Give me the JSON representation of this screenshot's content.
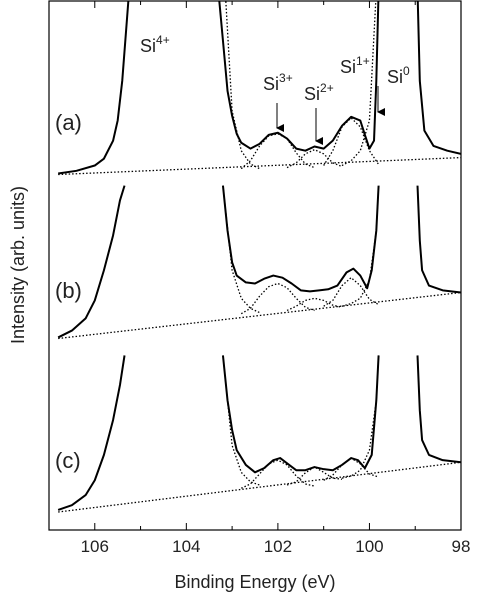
{
  "chart_data": {
    "type": "line",
    "x_label": "Binding Energy (eV)",
    "y_label": "Intensity (arb. units)",
    "xlim": [
      107,
      98
    ],
    "xticks": [
      106,
      104,
      102,
      100,
      98
    ],
    "xminorticks": [
      105,
      103,
      101,
      99
    ],
    "ylim": [
      0,
      100
    ],
    "annotations": [
      {
        "text": "Si",
        "sup": "4+"
      },
      {
        "text": "Si",
        "sup": "3+"
      },
      {
        "text": "Si",
        "sup": "2+"
      },
      {
        "text": "Si",
        "sup": "1+"
      },
      {
        "text": "Si",
        "sup": "0"
      }
    ],
    "panels": [
      {
        "label": "(a)",
        "series": [
          {
            "style": "solid",
            "color": "#000000",
            "x": [
              106.8,
              106.4,
              106.0,
              105.8,
              105.6,
              105.5,
              105.4,
              105.3,
              105.25,
              104.3,
              103.3,
              103.2,
              103.1,
              103.0,
              102.9,
              102.8,
              102.6,
              102.4,
              102.2,
              102.0,
              101.8,
              101.6,
              101.4,
              101.2,
              101.0,
              100.8,
              100.6,
              100.4,
              100.2,
              100.1,
              100.0,
              99.9,
              99.85,
              99.8,
              99.4,
              98.95,
              98.9,
              98.8,
              98.6,
              98.3,
              98.0
            ],
            "values": [
              67.4,
              67.9,
              68.9,
              70.2,
              73.6,
              77.4,
              84.9,
              96.2,
              101.9,
              null,
              101.9,
              92.5,
              83.0,
              78.3,
              74.9,
              73.2,
              72.1,
              73.0,
              74.7,
              75.1,
              74.0,
              72.1,
              71.7,
              72.5,
              72.1,
              73.6,
              76.4,
              78.1,
              77.4,
              74.7,
              72.1,
              73.6,
              84.9,
              101.9,
              null,
              101.9,
              84.9,
              75.5,
              72.6,
              71.7,
              71.1
            ]
          },
          {
            "style": "dotted",
            "color": "#000000",
            "x": [
              106.8,
              98.0
            ],
            "values": [
              67.2,
              70.4
            ]
          },
          {
            "style": "dotted",
            "color": "#000000",
            "x": [
              102.8,
              102.6,
              102.4,
              102.2,
              102.0,
              101.8,
              101.6,
              101.4,
              101.2
            ],
            "values": [
              68.3,
              69.8,
              72.6,
              74.5,
              74.9,
              74.0,
              71.3,
              69.2,
              68.5
            ]
          },
          {
            "style": "dotted",
            "color": "#000000",
            "x": [
              101.8,
              101.6,
              101.4,
              101.2,
              101.0,
              100.8,
              100.6
            ],
            "values": [
              68.5,
              69.4,
              71.1,
              71.9,
              71.1,
              69.4,
              68.7
            ]
          },
          {
            "style": "dotted",
            "color": "#000000",
            "x": [
              101.0,
              100.8,
              100.6,
              100.4,
              100.2,
              100.0,
              99.8
            ],
            "values": [
              68.9,
              71.7,
              76.2,
              77.9,
              76.2,
              71.7,
              69.1
            ]
          },
          {
            "style": "dotted",
            "color": "#000000",
            "x": [
              103.15,
              103.0,
              102.8,
              102.6,
              102.4
            ],
            "values": [
              101.9,
              79.2,
              71.7,
              69.2,
              68.3
            ]
          },
          {
            "style": "dotted",
            "color": "#000000",
            "x": [
              100.6,
              100.4,
              100.2,
              100.0,
              99.85
            ],
            "values": [
              68.9,
              69.8,
              71.7,
              77.4,
              101.9
            ]
          }
        ]
      },
      {
        "label": "(b)",
        "series": [
          {
            "style": "solid",
            "color": "#000000",
            "x": [
              106.8,
              106.5,
              106.2,
              106.0,
              105.8,
              105.6,
              105.45,
              105.35,
              104.3,
              103.2,
              103.1,
              103.0,
              102.9,
              102.7,
              102.5,
              102.3,
              102.1,
              101.9,
              101.7,
              101.5,
              101.3,
              101.1,
              100.9,
              100.7,
              100.5,
              100.35,
              100.2,
              100.05,
              99.95,
              99.85,
              99.8,
              99.4,
              98.95,
              98.9,
              98.85,
              98.7,
              98.4,
              98.0
            ],
            "values": [
              36.4,
              37.7,
              40.0,
              43.4,
              49.1,
              55.7,
              62.3,
              65.1,
              null,
              65.1,
              56.6,
              50.6,
              48.1,
              46.8,
              46.6,
              47.5,
              48.1,
              47.7,
              46.6,
              45.3,
              45.1,
              45.3,
              45.5,
              46.2,
              48.7,
              49.4,
              48.1,
              45.7,
              49.1,
              56.6,
              65.1,
              null,
              65.1,
              54.7,
              49.1,
              46.2,
              45.3,
              44.9
            ]
          },
          {
            "style": "dotted",
            "color": "#000000",
            "x": [
              106.8,
              98.0
            ],
            "values": [
              36.2,
              44.9
            ]
          },
          {
            "style": "dotted",
            "color": "#000000",
            "x": [
              102.8,
              102.6,
              102.4,
              102.2,
              102.0,
              101.8,
              101.6,
              101.4,
              101.2
            ],
            "values": [
              40.9,
              41.9,
              44.2,
              46.0,
              46.6,
              45.8,
              43.8,
              42.1,
              41.5
            ]
          },
          {
            "style": "dotted",
            "color": "#000000",
            "x": [
              101.8,
              101.6,
              101.4,
              101.2,
              101.0,
              100.8,
              100.6
            ],
            "values": [
              41.5,
              42.3,
              43.4,
              43.8,
              43.4,
              42.5,
              42.1
            ]
          },
          {
            "style": "dotted",
            "color": "#000000",
            "x": [
              101.0,
              100.8,
              100.6,
              100.4,
              100.2,
              100.0,
              99.8
            ],
            "values": [
              42.3,
              43.4,
              46.2,
              47.7,
              46.2,
              43.6,
              42.6
            ]
          },
          {
            "style": "dotted",
            "color": "#000000",
            "x": [
              103.2,
              103.0,
              102.8,
              102.6,
              102.4
            ],
            "values": [
              65.1,
              49.1,
              43.8,
              41.9,
              41.1
            ]
          },
          {
            "style": "dotted",
            "color": "#000000",
            "x": [
              100.6,
              100.4,
              100.2,
              100.0,
              99.85,
              99.8
            ],
            "values": [
              42.3,
              42.8,
              43.8,
              47.2,
              56.6,
              65.1
            ]
          }
        ]
      },
      {
        "label": "(c)",
        "series": [
          {
            "style": "solid",
            "color": "#000000",
            "x": [
              106.8,
              106.5,
              106.2,
              106.0,
              105.8,
              105.6,
              105.45,
              105.35,
              104.3,
              103.2,
              103.1,
              103.0,
              102.9,
              102.7,
              102.5,
              102.3,
              102.1,
              101.95,
              101.8,
              101.6,
              101.4,
              101.2,
              101.0,
              100.8,
              100.6,
              100.4,
              100.25,
              100.1,
              99.95,
              99.85,
              99.8,
              99.4,
              98.95,
              98.9,
              98.85,
              98.7,
              98.4,
              98.0
            ],
            "values": [
              3.8,
              4.7,
              6.6,
              9.4,
              14.2,
              20.8,
              27.4,
              33.0,
              null,
              33.0,
              24.5,
              18.9,
              15.1,
              12.3,
              10.9,
              11.7,
              13.2,
              13.6,
              12.6,
              11.3,
              11.3,
              11.9,
              11.5,
              11.3,
              12.3,
              13.6,
              13.2,
              11.7,
              14.2,
              24.5,
              33.0,
              null,
              33.0,
              22.6,
              17.0,
              14.2,
              13.2,
              12.8
            ]
          },
          {
            "style": "dotted",
            "color": "#000000",
            "x": [
              106.8,
              98.0
            ],
            "values": [
              3.4,
              12.8
            ]
          },
          {
            "style": "dotted",
            "color": "#000000",
            "x": [
              102.8,
              102.6,
              102.4,
              102.2,
              102.0,
              101.8,
              101.6,
              101.4,
              101.2
            ],
            "values": [
              7.9,
              8.7,
              10.6,
              12.5,
              13.2,
              12.3,
              10.2,
              8.7,
              8.3
            ]
          },
          {
            "style": "dotted",
            "color": "#000000",
            "x": [
              101.8,
              101.6,
              101.4,
              101.2,
              101.0,
              100.8,
              100.6
            ],
            "values": [
              8.5,
              9.1,
              10.8,
              11.9,
              10.9,
              9.8,
              9.6
            ]
          },
          {
            "style": "dotted",
            "color": "#000000",
            "x": [
              101.0,
              100.8,
              100.6,
              100.4,
              100.2,
              100.0,
              99.8
            ],
            "values": [
              9.4,
              10.4,
              12.3,
              13.6,
              12.5,
              10.6,
              10.0
            ]
          },
          {
            "style": "dotted",
            "color": "#000000",
            "x": [
              103.2,
              103.0,
              102.8,
              102.6,
              102.4
            ],
            "values": [
              33.0,
              16.0,
              10.9,
              9.1,
              8.5
            ]
          },
          {
            "style": "dotted",
            "color": "#000000",
            "x": [
              100.6,
              100.4,
              100.2,
              100.0,
              99.85,
              99.8
            ],
            "values": [
              9.8,
              10.2,
              11.3,
              15.1,
              24.5,
              33.0
            ]
          }
        ]
      }
    ]
  }
}
